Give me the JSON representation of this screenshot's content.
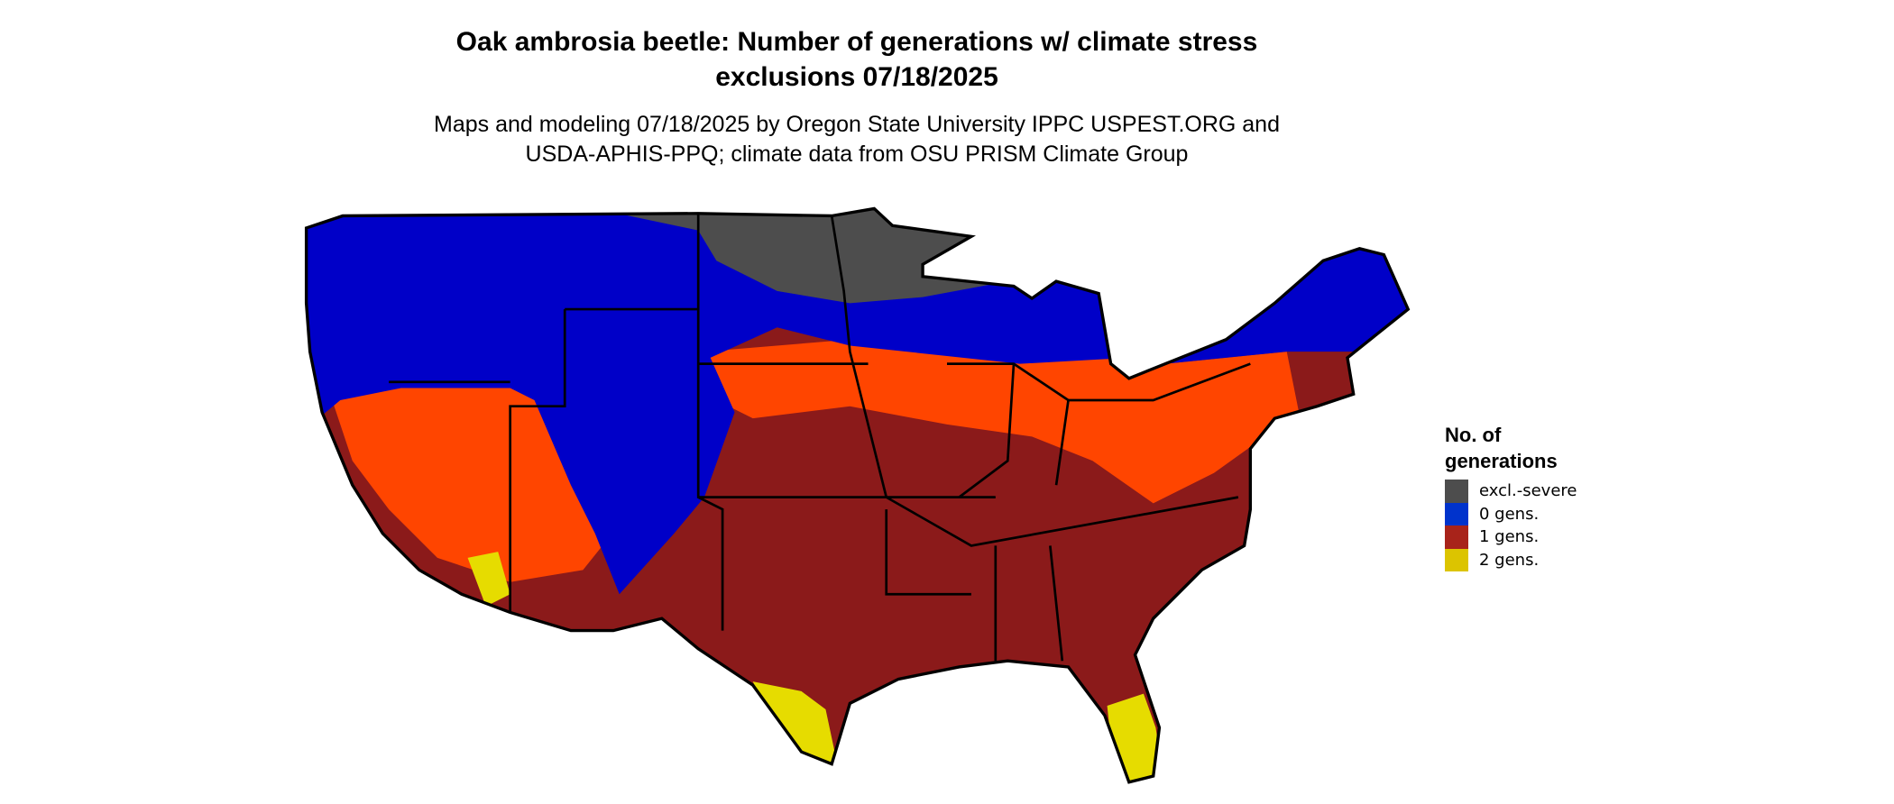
{
  "title": {
    "line1": "Oak ambrosia beetle: Number of generations w/ climate stress",
    "line2": "exclusions 07/18/2025"
  },
  "subtitle": {
    "line1": "Maps and modeling 07/18/2025 by Oregon State University IPPC USPEST.ORG and",
    "line2": "USDA-APHIS-PPQ; climate data from OSU PRISM Climate Group"
  },
  "legend": {
    "title_line1": "No. of",
    "title_line2": "generations",
    "items": [
      {
        "label": "excl.-severe",
        "color": "#4d4d4d"
      },
      {
        "label": "0 gens.",
        "color": "#0033cc"
      },
      {
        "label": "1 gens.",
        "color": "#a8231a"
      },
      {
        "label": "2 gens.",
        "color": "#dcc400"
      }
    ]
  },
  "map_colors": {
    "excl_severe": "#4d4d4d",
    "zero_gens": "#0000c8",
    "one_gens_dark": "#8b1a1a",
    "one_gens_light": "#ff4500",
    "two_gens": "#e6dc00"
  }
}
